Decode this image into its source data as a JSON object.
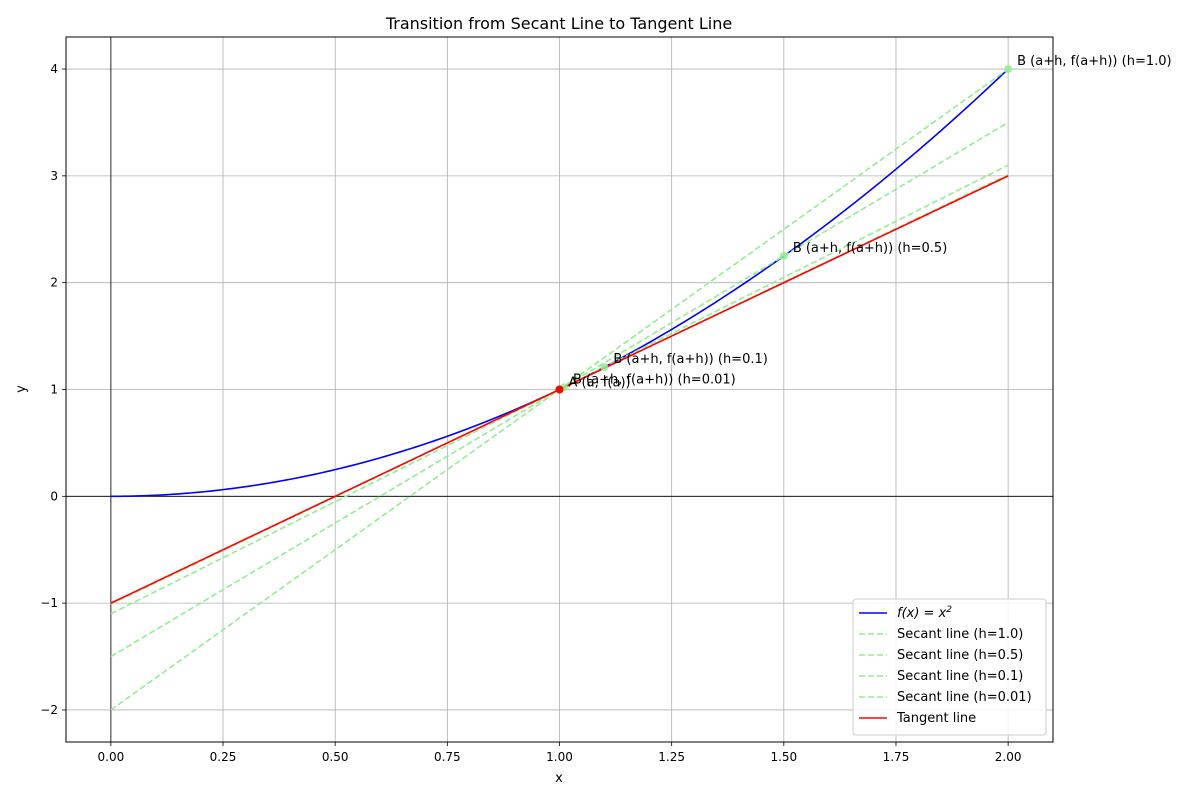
{
  "chart_data": {
    "type": "line",
    "title": "Transition from Secant Line to Tangent Line",
    "xlabel": "x",
    "ylabel": "y",
    "xlim": [
      -0.1,
      2.1
    ],
    "ylim": [
      -2.3,
      4.3
    ],
    "x_ticks": [
      0.0,
      0.25,
      0.5,
      0.75,
      1.0,
      1.25,
      1.5,
      1.75,
      2.0
    ],
    "x_tick_labels": [
      "0.00",
      "0.25",
      "0.50",
      "0.75",
      "1.00",
      "1.25",
      "1.50",
      "1.75",
      "2.00"
    ],
    "y_ticks": [
      -2,
      -1,
      0,
      1,
      2,
      3,
      4
    ],
    "y_tick_labels": [
      "−2",
      "−1",
      "0",
      "1",
      "2",
      "3",
      "4"
    ],
    "grid": true,
    "legend_position": "bottom-right",
    "point_a": {
      "x": 1.0,
      "y": 1.0,
      "label": "A (a, f(a))",
      "color": "#ff0000"
    },
    "series": [
      {
        "name": "f(x) = x²",
        "legend_name": "f(x) = x",
        "legend_sup": "2",
        "kind": "curve",
        "color": "#0000ff",
        "style": "solid",
        "function": "x^2",
        "x_range": [
          0,
          2
        ]
      },
      {
        "name": "Secant line (h=1.0)",
        "kind": "line",
        "color": "#90ee90",
        "style": "dashed",
        "points": [
          [
            0,
            -2.0
          ],
          [
            2,
            4.0
          ]
        ]
      },
      {
        "name": "Secant line (h=0.5)",
        "kind": "line",
        "color": "#90ee90",
        "style": "dashed",
        "points": [
          [
            0,
            -1.5
          ],
          [
            2,
            3.5
          ]
        ]
      },
      {
        "name": "Secant line (h=0.1)",
        "kind": "line",
        "color": "#90ee90",
        "style": "dashed",
        "points": [
          [
            0,
            -1.1
          ],
          [
            2,
            3.1
          ]
        ]
      },
      {
        "name": "Secant line (h=0.01)",
        "kind": "line",
        "color": "#90ee90",
        "style": "dashed",
        "points": [
          [
            0,
            -1.01
          ],
          [
            2,
            3.01
          ]
        ]
      },
      {
        "name": "Tangent line",
        "kind": "line",
        "color": "#ff0000",
        "style": "solid",
        "points": [
          [
            0,
            -1.0
          ],
          [
            2,
            3.0
          ]
        ]
      }
    ],
    "b_points": [
      {
        "x": 2.0,
        "y": 4.0,
        "label": "B (a+h, f(a+h)) (h=1.0)"
      },
      {
        "x": 1.5,
        "y": 2.25,
        "label": "B (a+h, f(a+h)) (h=0.5)"
      },
      {
        "x": 1.1,
        "y": 1.21,
        "label": "B (a+h, f(a+h)) (h=0.1)"
      },
      {
        "x": 1.01,
        "y": 1.0201,
        "label": "B (a+h, f(a+h)) (h=0.01)"
      }
    ],
    "b_point_color": "#90ee90"
  }
}
